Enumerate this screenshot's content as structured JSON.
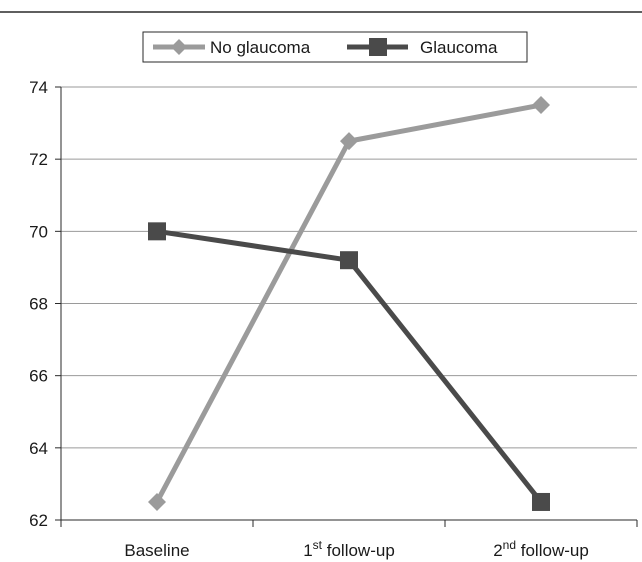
{
  "chart_data": {
    "type": "line",
    "categories": [
      {
        "main": "Baseline",
        "sup": "",
        "rest": ""
      },
      {
        "main": "1",
        "sup": "st",
        "rest": " follow-up"
      },
      {
        "main": "2",
        "sup": "nd",
        "rest": " follow-up"
      }
    ],
    "series": [
      {
        "name": "No glaucoma",
        "values": [
          62.5,
          72.5,
          73.5
        ],
        "color": "#9b9b9b",
        "marker": "diamond"
      },
      {
        "name": "Glaucoma",
        "values": [
          70.0,
          69.2,
          62.5
        ],
        "color": "#4a4a4a",
        "marker": "square"
      }
    ],
    "ylim": [
      62,
      74
    ],
    "yticks": [
      62,
      64,
      66,
      68,
      70,
      72,
      74
    ],
    "grid": true,
    "legend_position": "top-center"
  }
}
